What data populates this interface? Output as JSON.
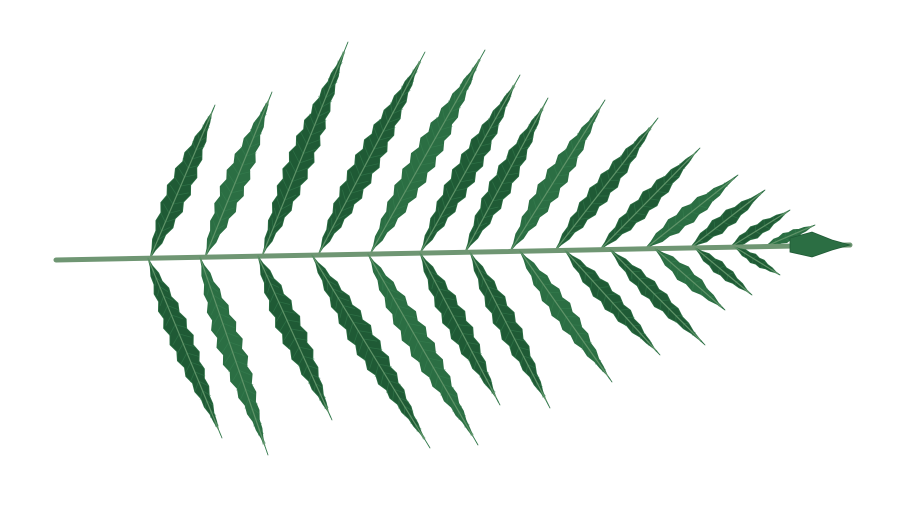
{
  "image": {
    "subject": "fern-frond",
    "background_color": "#ffffff",
    "colors": {
      "stem": "#6f9673",
      "leaf_dark": "#1f5a35",
      "leaf_mid": "#2b6e43",
      "leaf_light": "#3a8454",
      "midrib": "#5f9368"
    }
  }
}
